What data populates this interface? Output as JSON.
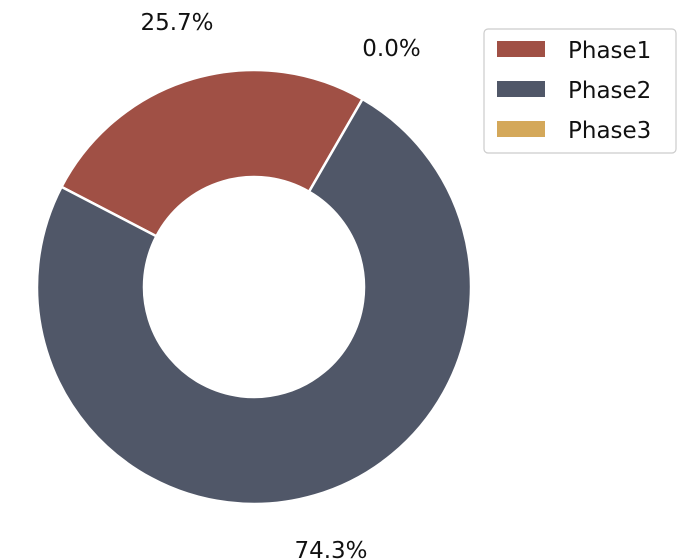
{
  "chart_data": {
    "type": "pie",
    "donut": true,
    "categories": [
      "Phase1",
      "Phase2",
      "Phase3"
    ],
    "values": [
      25.7,
      74.3,
      0.0
    ],
    "labels": [
      "25.7%",
      "74.3%",
      "0.0%"
    ],
    "colors": [
      "#a05045",
      "#505768",
      "#d4a85a"
    ],
    "legend": {
      "placement": "top-right",
      "entries": [
        "Phase1",
        "Phase2",
        "Phase3"
      ]
    }
  }
}
